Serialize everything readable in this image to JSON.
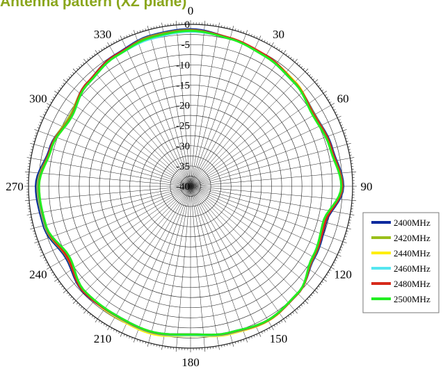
{
  "title": "Antenna pattern (XZ plane)",
  "colors": {
    "title": "#8aa61c",
    "grid": "#222222",
    "axis": "#000000"
  },
  "chart_data": {
    "type": "polar-line",
    "title": "Antenna pattern (XZ plane)",
    "angle_unit": "degrees",
    "angle_start": "top (0 = up)",
    "angle_direction": "clockwise",
    "angle_tick_step": 5,
    "angle_labels": [
      {
        "angle": 0,
        "text": "0"
      },
      {
        "angle": 30,
        "text": "30"
      },
      {
        "angle": 60,
        "text": "60"
      },
      {
        "angle": 90,
        "text": "90"
      },
      {
        "angle": 120,
        "text": "120"
      },
      {
        "angle": 150,
        "text": "150"
      },
      {
        "angle": 180,
        "text": "180"
      },
      {
        "angle": 210,
        "text": "210"
      },
      {
        "angle": 240,
        "text": "240"
      },
      {
        "angle": 270,
        "text": "270"
      },
      {
        "angle": 300,
        "text": "300"
      },
      {
        "angle": 330,
        "text": "330"
      }
    ],
    "radial_ticks": [
      0,
      -5,
      -10,
      -15,
      -20,
      -25,
      -30,
      -35,
      -40
    ],
    "radial_range": [
      -40,
      0
    ],
    "radial_unit": "dB",
    "angles": [
      0,
      15,
      30,
      45,
      60,
      75,
      90,
      105,
      120,
      135,
      150,
      165,
      180,
      195,
      210,
      225,
      240,
      255,
      270,
      285,
      300,
      315,
      330,
      345
    ],
    "base_pattern": [
      -1.6,
      -2.3,
      -3.0,
      -3.8,
      -5.0,
      -4.2,
      -2.8,
      -5.8,
      -5.2,
      -2.6,
      -1.8,
      -2.6,
      -3.4,
      -2.8,
      -3.2,
      -3.2,
      -5.2,
      -3.0,
      -2.6,
      -4.4,
      -6.0,
      -4.2,
      -3.0,
      -2.0
    ],
    "series": [
      {
        "name": "2400MHz",
        "color": "#0b2a9e",
        "deltas": [
          0.4,
          0.2,
          0.0,
          0.0,
          0.4,
          0.4,
          0.5,
          0.4,
          0.5,
          0.0,
          0.0,
          0.0,
          0.0,
          0.0,
          0.0,
          0.4,
          0.7,
          0.6,
          0.8,
          0.4,
          0.3,
          0.3,
          0.4,
          0.5
        ]
      },
      {
        "name": "2420MHz",
        "color": "#9abf1a",
        "deltas": [
          0.2,
          0.1,
          0.0,
          0.1,
          0.3,
          0.2,
          0.3,
          0.1,
          0.3,
          0.0,
          0.0,
          0.1,
          0.1,
          0.0,
          0.1,
          0.2,
          0.4,
          0.3,
          0.4,
          0.2,
          0.5,
          0.2,
          0.2,
          0.3
        ]
      },
      {
        "name": "2440MHz",
        "color": "#ffee00",
        "deltas": [
          0.1,
          0.2,
          0.2,
          0.3,
          0.0,
          0.1,
          0.1,
          0.0,
          0.2,
          0.1,
          0.2,
          0.4,
          0.3,
          0.5,
          0.4,
          0.1,
          0.0,
          0.1,
          0.0,
          0.0,
          0.0,
          0.1,
          0.1,
          0.1
        ]
      },
      {
        "name": "2460MHz",
        "color": "#55e6f0",
        "deltas": [
          -0.2,
          0.1,
          0.1,
          0.1,
          0.1,
          0.0,
          0.1,
          -0.1,
          0.1,
          0.1,
          0.1,
          0.2,
          0.2,
          0.2,
          0.2,
          0.1,
          -0.1,
          0.2,
          0.2,
          0.1,
          0.0,
          0.0,
          0.0,
          -0.3
        ]
      },
      {
        "name": "2480MHz",
        "color": "#d62a1a",
        "deltas": [
          0.1,
          0.2,
          0.3,
          0.1,
          0.2,
          0.2,
          0.2,
          0.2,
          0.2,
          0.1,
          0.1,
          0.1,
          0.0,
          0.1,
          0.1,
          0.3,
          0.3,
          0.1,
          0.1,
          0.2,
          0.1,
          0.3,
          0.3,
          0.1
        ]
      },
      {
        "name": "2500MHz",
        "color": "#22ee22",
        "deltas": [
          0.0,
          0.0,
          0.0,
          0.0,
          -0.1,
          -0.1,
          0.0,
          -0.3,
          0.0,
          0.0,
          0.0,
          0.0,
          0.0,
          0.0,
          0.0,
          0.0,
          -0.2,
          0.0,
          0.0,
          0.0,
          0.0,
          0.0,
          0.0,
          0.0
        ]
      }
    ],
    "legend": {
      "placement": "bottom-right"
    },
    "grid": true
  }
}
